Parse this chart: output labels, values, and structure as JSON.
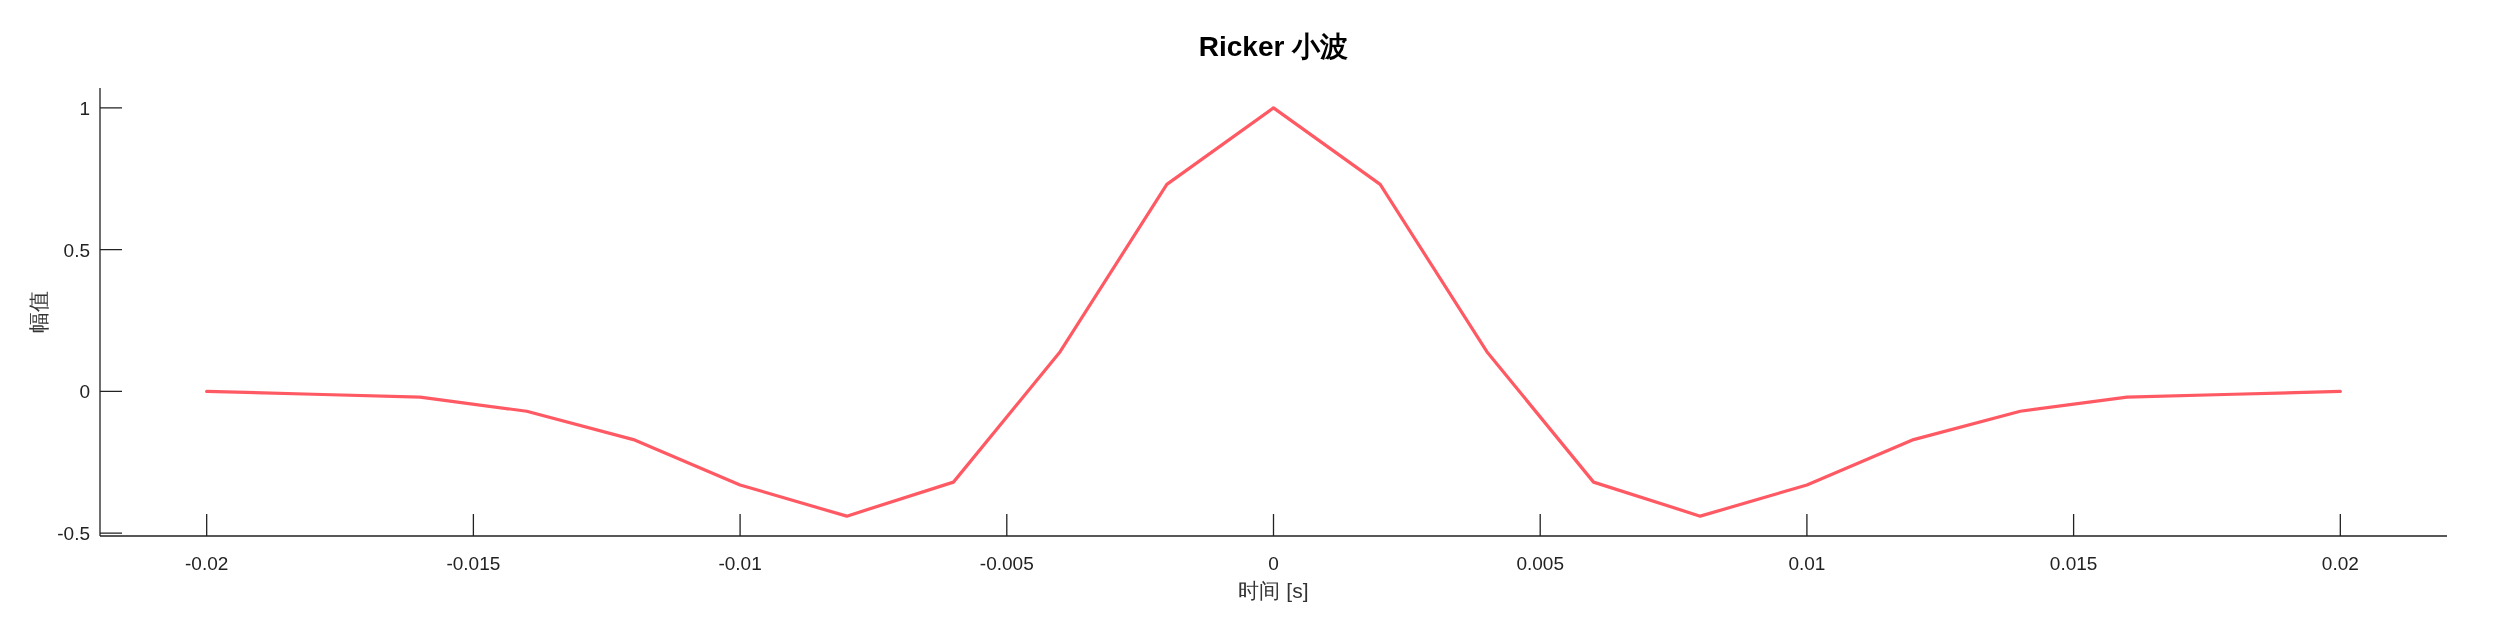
{
  "chart_data": {
    "type": "line",
    "title": "Ricker 小波",
    "xlabel": "时间 [s]",
    "ylabel": "幅值",
    "x": [
      -0.02,
      -0.018,
      -0.016,
      -0.014,
      -0.012,
      -0.01,
      -0.008,
      -0.006,
      -0.004,
      -0.002,
      0,
      0.002,
      0.004,
      0.006,
      0.008,
      0.01,
      0.012,
      0.014,
      0.016,
      0.018,
      0.02
    ],
    "series": [
      {
        "color": "#ff5a64",
        "values": [
          0,
          -0.01,
          -0.02,
          -0.07,
          -0.17,
          -0.33,
          -0.44,
          -0.32,
          0.14,
          0.73,
          1,
          0.73,
          0.14,
          -0.32,
          -0.44,
          -0.33,
          -0.17,
          -0.07,
          -0.02,
          -0.01,
          0
        ]
      }
    ],
    "xlim": [
      -0.022,
      0.022
    ],
    "ylim": [
      -0.51,
      1.07
    ],
    "xticks": [
      -0.02,
      -0.015,
      -0.01,
      -0.005,
      0,
      0.005,
      0.01,
      0.015,
      0.02
    ],
    "yticks": [
      -0.5,
      0,
      0.5,
      1
    ],
    "grid": false,
    "marker": "none",
    "line_style": "solid"
  }
}
